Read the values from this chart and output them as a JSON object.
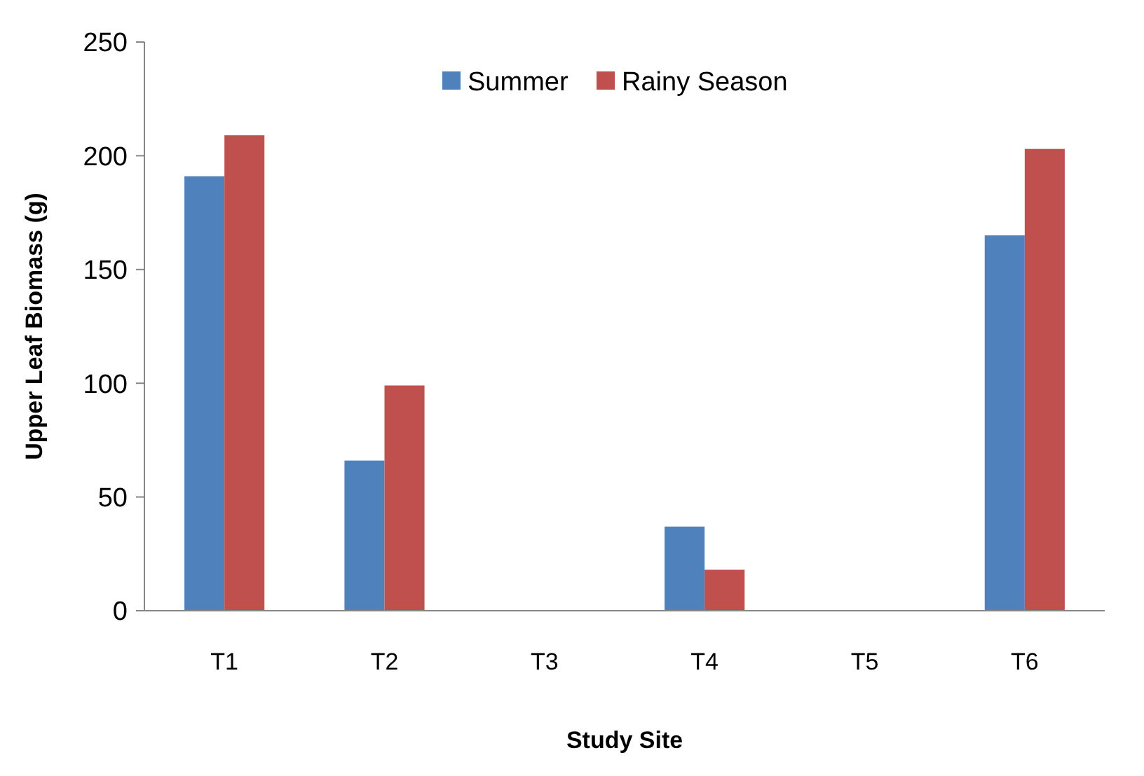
{
  "chart_data": {
    "type": "bar",
    "xlabel": "Study Site",
    "ylabel": "Upper Leaf Biomass (g)",
    "categories": [
      "T1",
      "T2",
      "T3",
      "T4",
      "T5",
      "T6"
    ],
    "series": [
      {
        "name": "Summer",
        "color": "#4f81bd",
        "values": [
          191,
          66,
          0,
          37,
          0,
          165
        ]
      },
      {
        "name": "Rainy Season",
        "color": "#c0504d",
        "values": [
          209,
          99,
          0,
          18,
          0,
          203
        ]
      }
    ],
    "ylim": [
      0,
      250
    ],
    "yticks": [
      0,
      50,
      100,
      150,
      200,
      250
    ],
    "grid": false,
    "legend": "top"
  }
}
